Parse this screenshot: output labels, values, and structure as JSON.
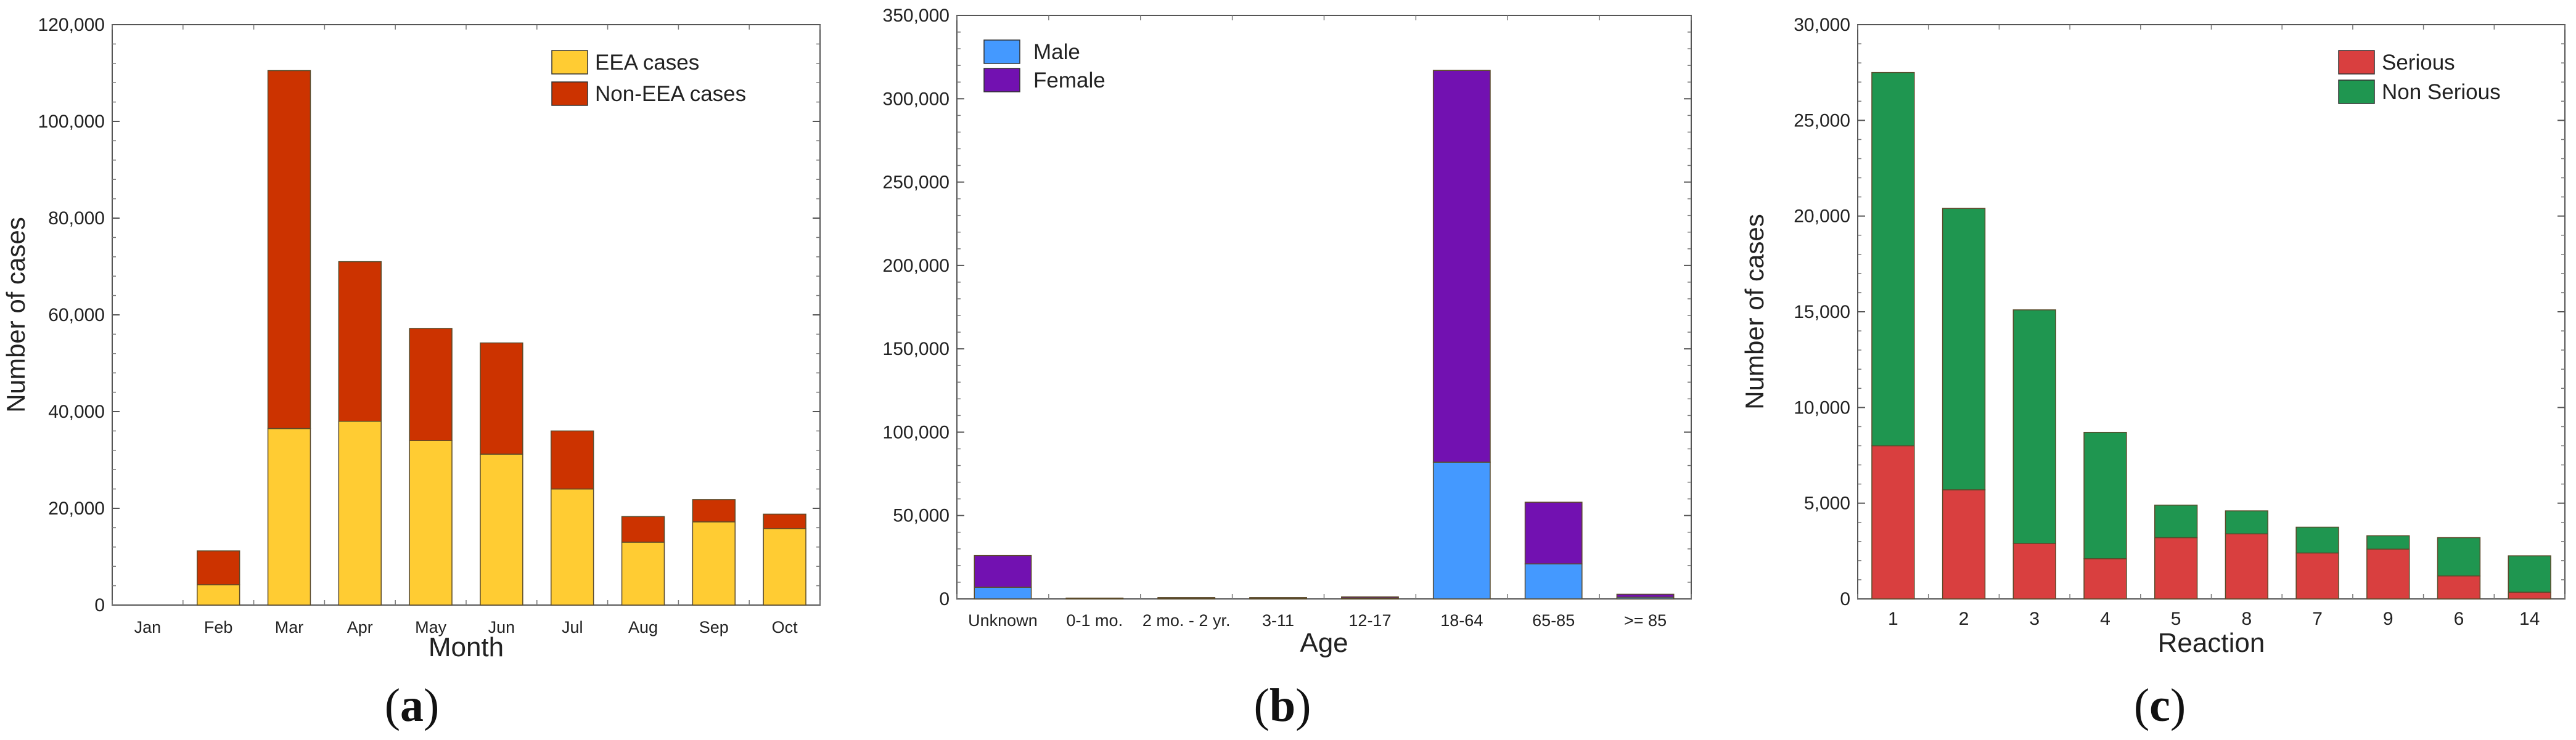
{
  "panels": [
    {
      "caption": "(a)",
      "caption_letter": "a",
      "chart_data": {
        "type": "bar",
        "stacked": true,
        "title": "",
        "xlabel": "Month",
        "ylabel": "Number of cases",
        "categories": [
          "Jan",
          "Feb",
          "Mar",
          "Apr",
          "May",
          "Jun",
          "Jul",
          "Aug",
          "Sep",
          "Oct"
        ],
        "ylim": [
          0,
          120000
        ],
        "yticks": [
          0,
          20000,
          40000,
          60000,
          80000,
          100000,
          120000
        ],
        "ytick_labels": [
          "0",
          "20,000",
          "40,000",
          "60,000",
          "80,000",
          "100,000",
          "120,000"
        ],
        "legend_position": "top-right",
        "series": [
          {
            "name": "EEA cases",
            "color": "#FFCC33",
            "values": [
              0,
              4200,
              36500,
              38000,
              34000,
              31200,
              24000,
              13000,
              17200,
              15800
            ]
          },
          {
            "name": "Non-EEA cases",
            "color": "#CC3300",
            "values": [
              0,
              7000,
              74000,
              33000,
              23200,
              23000,
              12000,
              5300,
              4600,
              3000
            ]
          }
        ]
      }
    },
    {
      "caption": "(b)",
      "caption_letter": "b",
      "chart_data": {
        "type": "bar",
        "stacked": true,
        "title": "",
        "xlabel": "Age",
        "ylabel": "",
        "categories": [
          "Unknown",
          "0-1 mo.",
          "2 mo. - 2 yr.",
          "3-11",
          "12-17",
          "18-64",
          "65-85",
          ">= 85"
        ],
        "ylim": [
          0,
          350000
        ],
        "yticks": [
          0,
          50000,
          100000,
          150000,
          200000,
          250000,
          300000,
          350000
        ],
        "ytick_labels": [
          "0",
          "50,000",
          "100,000",
          "150,000",
          "200,000",
          "250,000",
          "300,000",
          "350,000"
        ],
        "legend_position": "top-left",
        "series": [
          {
            "name": "Male",
            "color": "#4499FF",
            "values": [
              7000,
              200,
              400,
              400,
              500,
              82000,
              21000,
              1000
            ]
          },
          {
            "name": "Female",
            "color": "#7211B1",
            "values": [
              19000,
              300,
              400,
              400,
              700,
              235000,
              37000,
              1800
            ]
          }
        ]
      }
    },
    {
      "caption": "(c)",
      "caption_letter": "c",
      "chart_data": {
        "type": "bar",
        "stacked": true,
        "title": "",
        "xlabel": "Reaction",
        "ylabel": "Number of cases",
        "categories": [
          "1",
          "2",
          "3",
          "4",
          "5",
          "8",
          "7",
          "9",
          "6",
          "14"
        ],
        "ylim": [
          0,
          30000
        ],
        "yticks": [
          0,
          5000,
          10000,
          15000,
          20000,
          25000,
          30000
        ],
        "ytick_labels": [
          "0",
          "5,000",
          "10,000",
          "15,000",
          "20,000",
          "25,000",
          "30,000"
        ],
        "legend_position": "top-right",
        "series": [
          {
            "name": "Serious",
            "color": "#D93F3F",
            "values": [
              8000,
              5700,
              2900,
              2100,
              3200,
              3400,
              2400,
              2600,
              1200,
              350
            ]
          },
          {
            "name": "Non Serious",
            "color": "#1F9650",
            "values": [
              19500,
              14700,
              12200,
              6600,
              1700,
              1200,
              1350,
              700,
              2000,
              1900
            ]
          }
        ]
      }
    }
  ]
}
